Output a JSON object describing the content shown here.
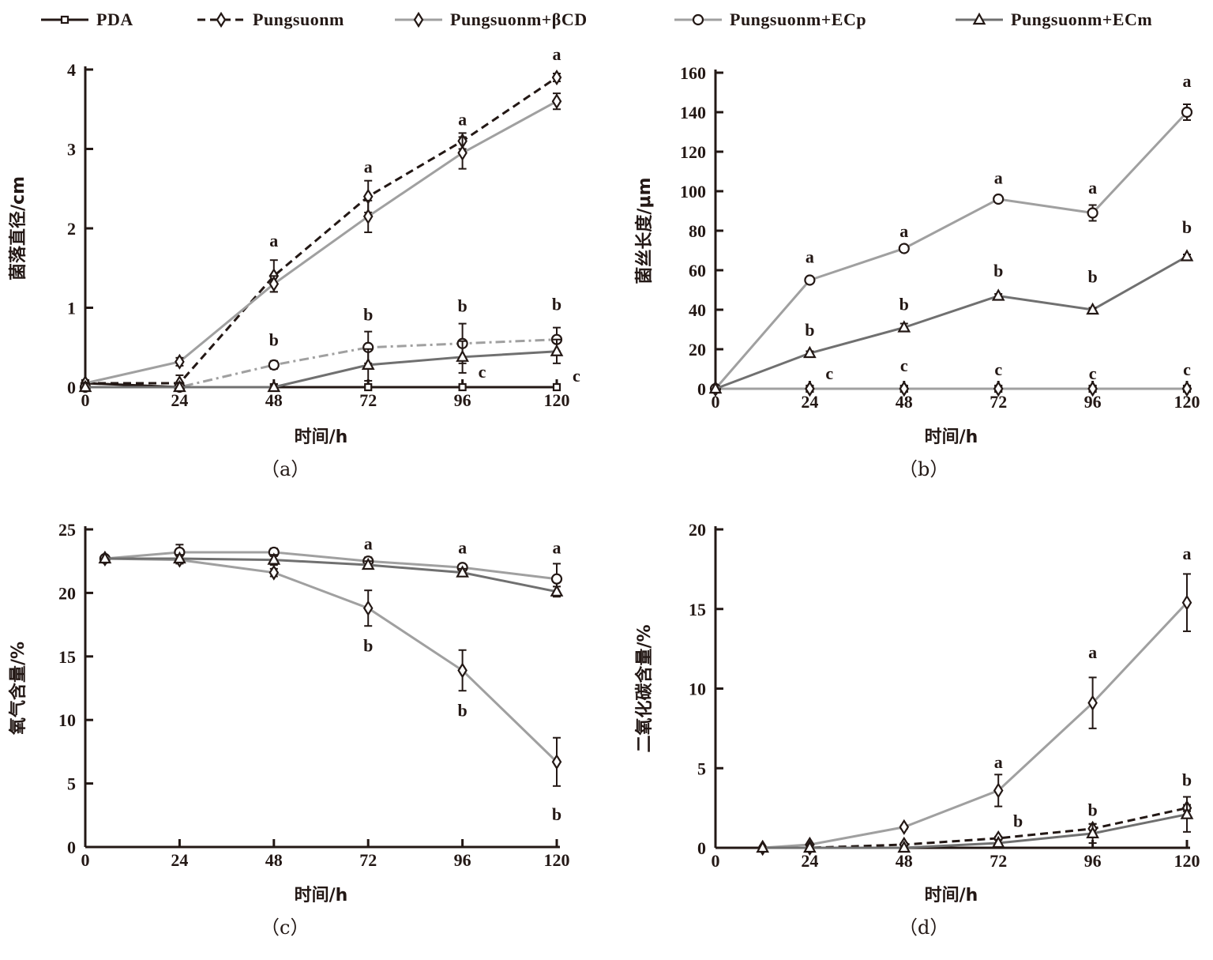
{
  "legend": [
    {
      "key": "PDA",
      "label": "PDA",
      "marker": "square",
      "color": "#231815",
      "dash": "solid"
    },
    {
      "key": "Pungsuonm",
      "label": "Pungsuonm",
      "marker": "diamond",
      "color": "#231815",
      "dash": "dashed"
    },
    {
      "key": "BCD",
      "label": "Pungsuonm+βCD",
      "marker": "diamond",
      "color": "#a0a0a0",
      "dash": "solid"
    },
    {
      "key": "ECp",
      "label": "Pungsuonm+ECp",
      "marker": "circle",
      "color": "#a0a0a0",
      "dash": "solid"
    },
    {
      "key": "ECm",
      "label": "Pungsuonm+ECm",
      "marker": "triangle",
      "color": "#707070",
      "dash": "solid"
    }
  ],
  "chart_data": [
    {
      "id": "a",
      "type": "line",
      "caption": "（a）",
      "xlabel": "时间/h",
      "ylabel": "菌落直径/cm",
      "xticks": [
        0,
        24,
        48,
        72,
        96,
        120
      ],
      "yticks": [
        0,
        1,
        2,
        3,
        4
      ],
      "xlim": [
        0,
        120
      ],
      "ylim": [
        0,
        4
      ],
      "grid": false,
      "series": [
        {
          "name": "PDA",
          "x": [
            0,
            24,
            48,
            72,
            96,
            120
          ],
          "y": [
            0.05,
            0,
            0,
            0,
            0,
            0
          ],
          "err": [
            0,
            0,
            0,
            0,
            0,
            0
          ]
        },
        {
          "name": "Pungsuonm",
          "x": [
            0,
            24,
            48,
            72,
            96,
            120
          ],
          "y": [
            0.05,
            0.05,
            1.4,
            2.4,
            3.1,
            3.9
          ],
          "err": [
            0,
            0.1,
            0.2,
            0.2,
            0.1,
            0.05
          ]
        },
        {
          "name": "Pungsuonm+βCD",
          "x": [
            0,
            24,
            48,
            72,
            96,
            120
          ],
          "y": [
            0.05,
            0.32,
            1.3,
            2.15,
            2.95,
            3.6
          ],
          "err": [
            0,
            0.05,
            0.1,
            0.2,
            0.2,
            0.1
          ]
        },
        {
          "name": "Pungsuonm+ECp",
          "x": [
            0,
            24,
            48,
            72,
            96,
            120
          ],
          "y": [
            0,
            0,
            0.28,
            0.5,
            0.55,
            0.6
          ],
          "err": [
            0,
            0,
            0.05,
            0.2,
            0.25,
            0.15
          ]
        },
        {
          "name": "Pungsuonm+ECm",
          "x": [
            0,
            24,
            48,
            72,
            96,
            120
          ],
          "y": [
            0,
            0,
            0,
            0.28,
            0.38,
            0.45
          ],
          "err": [
            0,
            0,
            0,
            0.2,
            0.2,
            0.15
          ]
        }
      ],
      "annotations": [
        {
          "x": 48,
          "y": 1.85,
          "text": "a"
        },
        {
          "x": 72,
          "y": 2.78,
          "text": "a"
        },
        {
          "x": 96,
          "y": 3.38,
          "text": "a"
        },
        {
          "x": 120,
          "y": 4.2,
          "text": "a"
        },
        {
          "x": 48,
          "y": 0.6,
          "text": "b"
        },
        {
          "x": 72,
          "y": 0.92,
          "text": "b"
        },
        {
          "x": 96,
          "y": 1.03,
          "text": "b"
        },
        {
          "x": 120,
          "y": 1.05,
          "text": "b"
        },
        {
          "x": 101,
          "y": 0.2,
          "text": "c"
        },
        {
          "x": 125,
          "y": 0.15,
          "text": "c"
        }
      ]
    },
    {
      "id": "b",
      "type": "line",
      "caption": "（b）",
      "xlabel": "时间/h",
      "ylabel": "菌丝长度/μm",
      "xticks": [
        0,
        24,
        48,
        72,
        96,
        120
      ],
      "yticks": [
        0,
        20,
        40,
        60,
        80,
        100,
        120,
        140,
        160
      ],
      "xlim": [
        0,
        120
      ],
      "ylim": [
        0,
        160
      ],
      "grid": false,
      "series": [
        {
          "name": "PDA",
          "x": [
            0,
            24,
            48,
            72,
            96,
            120
          ],
          "y": [
            0,
            0,
            0,
            0,
            0,
            0
          ],
          "err": [
            0,
            0,
            0,
            0,
            0,
            0
          ]
        },
        {
          "name": "Pungsuonm",
          "x": [
            0,
            24,
            48,
            72,
            96,
            120
          ],
          "y": [
            0,
            0,
            0,
            0,
            0,
            0
          ],
          "err": [
            0,
            0,
            0,
            0,
            0,
            0
          ]
        },
        {
          "name": "Pungsuonm+βCD",
          "x": [
            0,
            24,
            48,
            72,
            96,
            120
          ],
          "y": [
            0,
            0,
            0,
            0,
            0,
            0
          ],
          "err": [
            0,
            0,
            0,
            0,
            0,
            0
          ]
        },
        {
          "name": "Pungsuonm+ECp",
          "x": [
            0,
            24,
            48,
            72,
            96,
            120
          ],
          "y": [
            0,
            55,
            71,
            96,
            89,
            140
          ],
          "err": [
            0,
            1,
            1,
            1,
            4,
            4
          ]
        },
        {
          "name": "Pungsuonm+ECm",
          "x": [
            0,
            24,
            48,
            72,
            96,
            120
          ],
          "y": [
            0,
            18,
            31,
            47,
            40,
            67
          ],
          "err": [
            0,
            1,
            2,
            1,
            1,
            1
          ]
        }
      ],
      "annotations": [
        {
          "x": 24,
          "y": 67,
          "text": "a"
        },
        {
          "x": 48,
          "y": 80,
          "text": "a"
        },
        {
          "x": 72,
          "y": 107,
          "text": "a"
        },
        {
          "x": 96,
          "y": 102,
          "text": "a"
        },
        {
          "x": 120,
          "y": 156,
          "text": "a"
        },
        {
          "x": 24,
          "y": 30,
          "text": "b"
        },
        {
          "x": 48,
          "y": 43,
          "text": "b"
        },
        {
          "x": 72,
          "y": 60,
          "text": "b"
        },
        {
          "x": 96,
          "y": 57,
          "text": "b"
        },
        {
          "x": 120,
          "y": 82,
          "text": "b"
        },
        {
          "x": 29,
          "y": 8,
          "text": "c"
        },
        {
          "x": 48,
          "y": 12,
          "text": "c"
        },
        {
          "x": 72,
          "y": 10,
          "text": "c"
        },
        {
          "x": 96,
          "y": 8,
          "text": "c"
        },
        {
          "x": 120,
          "y": 10,
          "text": "c"
        }
      ]
    },
    {
      "id": "c",
      "type": "line",
      "caption": "（c）",
      "xlabel": "时间/h",
      "ylabel": "氧气含量/%",
      "xticks": [
        0,
        24,
        48,
        72,
        96,
        120
      ],
      "yticks": [
        0,
        5,
        10,
        15,
        20,
        25
      ],
      "xlim": [
        0,
        120
      ],
      "ylim": [
        0,
        25
      ],
      "grid": false,
      "series": [
        {
          "name": "Pungsuonm+βCD",
          "x": [
            5,
            24,
            48,
            72,
            96,
            120
          ],
          "y": [
            22.7,
            22.6,
            21.6,
            18.8,
            13.9,
            6.7
          ],
          "err": [
            0,
            0.3,
            0.3,
            1.4,
            1.6,
            1.9
          ]
        },
        {
          "name": "Pungsuonm+ECp",
          "x": [
            5,
            24,
            48,
            72,
            96,
            120
          ],
          "y": [
            22.7,
            23.2,
            23.2,
            22.5,
            22.0,
            21.1
          ],
          "err": [
            0,
            0.6,
            0.3,
            0.3,
            0.2,
            1.2
          ]
        },
        {
          "name": "Pungsuonm+ECm",
          "x": [
            5,
            24,
            48,
            72,
            96,
            120
          ],
          "y": [
            22.7,
            22.7,
            22.6,
            22.2,
            21.6,
            20.1
          ],
          "err": [
            0,
            0.3,
            0.4,
            0.3,
            0.3,
            0.4
          ]
        }
      ],
      "annotations": [
        {
          "x": 72,
          "y": 23.9,
          "text": "a"
        },
        {
          "x": 96,
          "y": 23.6,
          "text": "a"
        },
        {
          "x": 120,
          "y": 23.6,
          "text": "a"
        },
        {
          "x": 72,
          "y": 15.9,
          "text": "b"
        },
        {
          "x": 96,
          "y": 10.8,
          "text": "b"
        },
        {
          "x": 120,
          "y": 2.6,
          "text": "b"
        }
      ]
    },
    {
      "id": "d",
      "type": "line",
      "caption": "（d）",
      "xlabel": "时间/h",
      "ylabel": "二氧化碳含量/%",
      "xticks": [
        0,
        24,
        48,
        72,
        96,
        120
      ],
      "yticks": [
        0,
        5,
        10,
        15,
        20
      ],
      "xlim": [
        0,
        120
      ],
      "ylim": [
        0,
        20
      ],
      "grid": false,
      "series": [
        {
          "name": "Pungsuonm+βCD",
          "x": [
            12,
            24,
            48,
            72,
            96,
            120
          ],
          "y": [
            0,
            0.2,
            1.3,
            3.6,
            9.1,
            15.4
          ],
          "err": [
            0,
            0,
            0.1,
            1.0,
            1.6,
            1.8
          ]
        },
        {
          "name": "Pungsuonm",
          "x": [
            12,
            24,
            48,
            72,
            96,
            120
          ],
          "y": [
            0,
            0,
            0.2,
            0.6,
            1.2,
            2.5
          ],
          "err": [
            0,
            0,
            0.1,
            0.1,
            0.3,
            0.2
          ]
        },
        {
          "name": "Pungsuonm+ECm",
          "x": [
            12,
            24,
            48,
            72,
            96,
            120
          ],
          "y": [
            0,
            0,
            0,
            0.3,
            0.9,
            2.1
          ],
          "err": [
            0,
            0,
            0,
            0.2,
            0.6,
            1.1
          ]
        }
      ],
      "annotations": [
        {
          "x": 72,
          "y": 5.4,
          "text": "a"
        },
        {
          "x": 96,
          "y": 12.3,
          "text": "a"
        },
        {
          "x": 120,
          "y": 18.5,
          "text": "a"
        },
        {
          "x": 77,
          "y": 1.7,
          "text": "b"
        },
        {
          "x": 96,
          "y": 2.4,
          "text": "b"
        },
        {
          "x": 120,
          "y": 4.3,
          "text": "b"
        }
      ]
    }
  ]
}
